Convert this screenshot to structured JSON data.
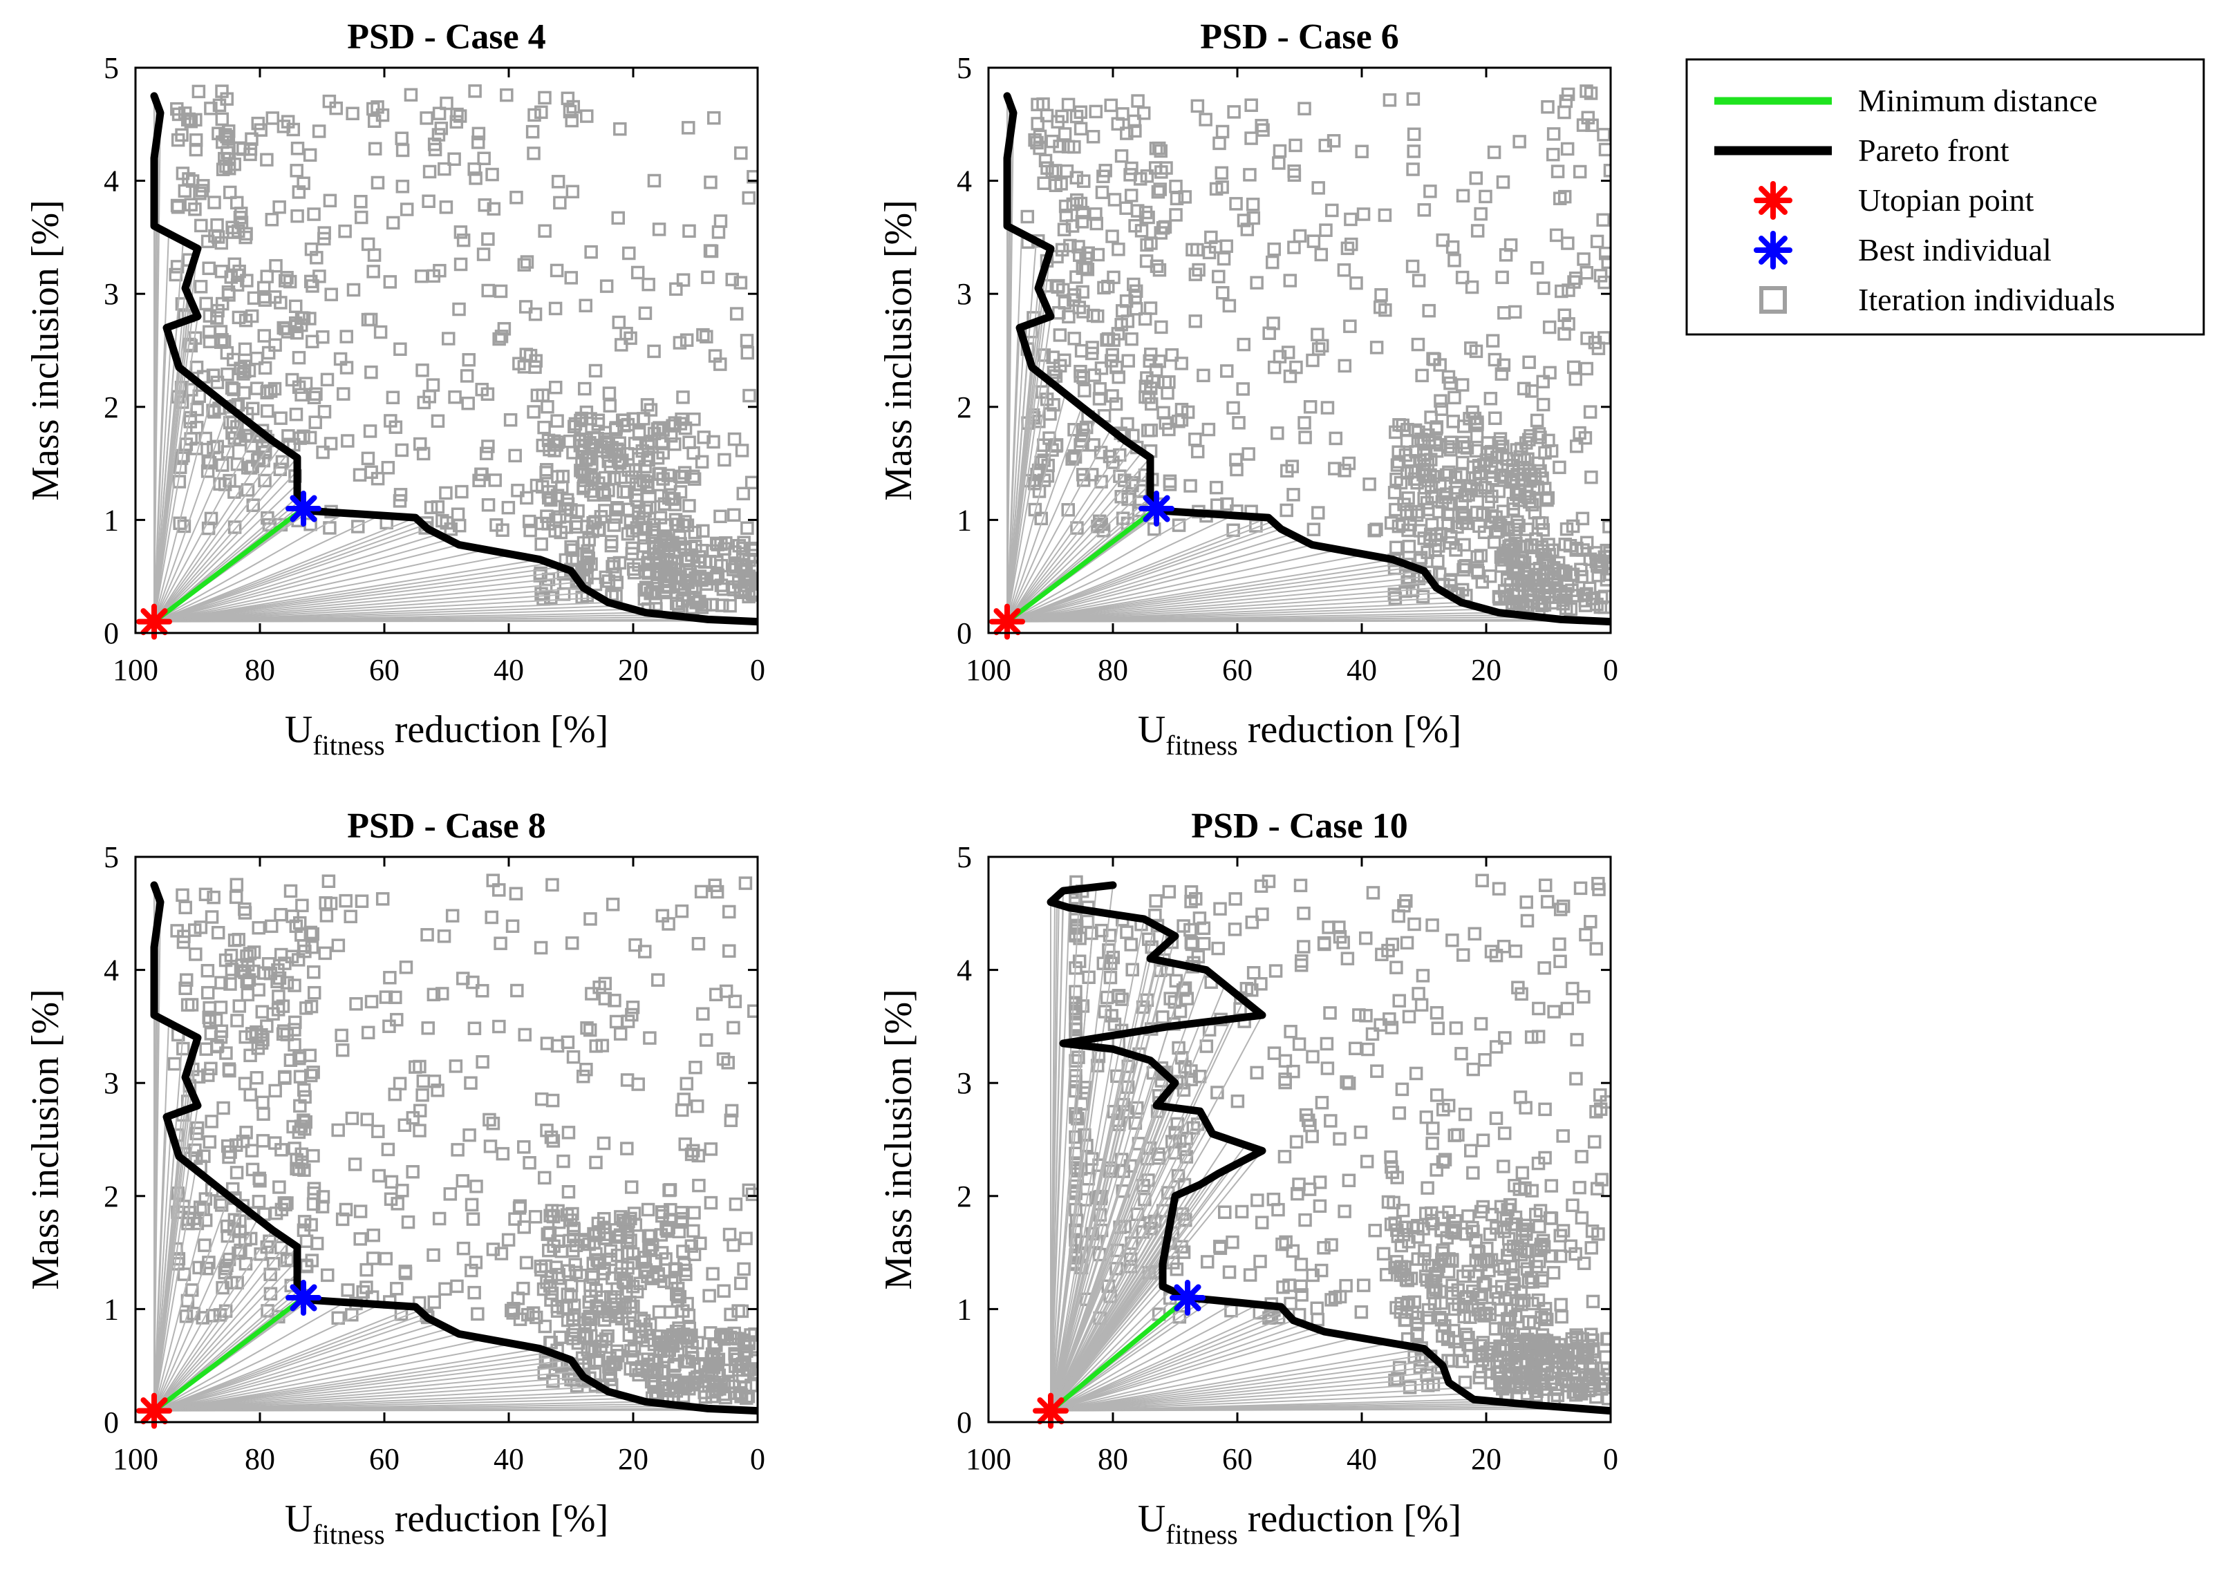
{
  "chart_data": [
    {
      "type": "scatter",
      "title": "PSD - Case 4",
      "xlabel_main": "U",
      "xlabel_sub": "fitness",
      "xlabel_rest": " reduction [%]",
      "ylabel": "Mass inclusion [%]",
      "xlim": [
        100,
        0
      ],
      "ylim": [
        0,
        5
      ],
      "xticks": [
        "100",
        "80",
        "60",
        "40",
        "20",
        "0"
      ],
      "yticks": [
        "0",
        "1",
        "2",
        "3",
        "4",
        "5"
      ],
      "utopian_point": {
        "x": 97,
        "y": 0.1
      },
      "best_individual": {
        "x": 73,
        "y": 1.1
      },
      "pareto_front": [
        [
          97,
          4.75
        ],
        [
          96,
          4.6
        ],
        [
          97,
          4.2
        ],
        [
          97,
          3.6
        ],
        [
          90,
          3.4
        ],
        [
          92,
          3.05
        ],
        [
          90,
          2.8
        ],
        [
          95,
          2.7
        ],
        [
          93,
          2.35
        ],
        [
          85,
          2.0
        ],
        [
          78,
          1.7
        ],
        [
          74,
          1.55
        ],
        [
          74,
          1.2
        ],
        [
          73,
          1.1
        ],
        [
          72,
          1.08
        ],
        [
          55,
          1.02
        ],
        [
          53,
          0.92
        ],
        [
          48,
          0.78
        ],
        [
          35,
          0.65
        ],
        [
          30,
          0.55
        ],
        [
          28,
          0.4
        ],
        [
          24,
          0.27
        ],
        [
          18,
          0.18
        ],
        [
          8,
          0.12
        ],
        [
          0,
          0.1
        ]
      ]
    },
    {
      "type": "scatter",
      "title": "PSD - Case 6",
      "xlabel_main": "U",
      "xlabel_sub": "fitness",
      "xlabel_rest": " reduction [%]",
      "ylabel": "Mass inclusion [%]",
      "xlim": [
        100,
        0
      ],
      "ylim": [
        0,
        5
      ],
      "xticks": [
        "100",
        "80",
        "60",
        "40",
        "20",
        "0"
      ],
      "yticks": [
        "0",
        "1",
        "2",
        "3",
        "4",
        "5"
      ],
      "utopian_point": {
        "x": 97,
        "y": 0.1
      },
      "best_individual": {
        "x": 73,
        "y": 1.1
      },
      "pareto_front": [
        [
          97,
          4.75
        ],
        [
          96,
          4.6
        ],
        [
          97,
          4.2
        ],
        [
          97,
          3.6
        ],
        [
          90,
          3.4
        ],
        [
          92,
          3.05
        ],
        [
          90,
          2.8
        ],
        [
          95,
          2.7
        ],
        [
          93,
          2.35
        ],
        [
          85,
          2.0
        ],
        [
          78,
          1.7
        ],
        [
          74,
          1.55
        ],
        [
          74,
          1.2
        ],
        [
          73,
          1.1
        ],
        [
          72,
          1.08
        ],
        [
          55,
          1.02
        ],
        [
          53,
          0.92
        ],
        [
          48,
          0.78
        ],
        [
          35,
          0.65
        ],
        [
          30,
          0.55
        ],
        [
          28,
          0.4
        ],
        [
          24,
          0.27
        ],
        [
          18,
          0.18
        ],
        [
          8,
          0.12
        ],
        [
          0,
          0.1
        ]
      ]
    },
    {
      "type": "scatter",
      "title": "PSD - Case 8",
      "xlabel_main": "U",
      "xlabel_sub": "fitness",
      "xlabel_rest": " reduction [%]",
      "ylabel": "Mass inclusion [%]",
      "xlim": [
        100,
        0
      ],
      "ylim": [
        0,
        5
      ],
      "xticks": [
        "100",
        "80",
        "60",
        "40",
        "20",
        "0"
      ],
      "yticks": [
        "0",
        "1",
        "2",
        "3",
        "4",
        "5"
      ],
      "utopian_point": {
        "x": 97,
        "y": 0.1
      },
      "best_individual": {
        "x": 73,
        "y": 1.1
      },
      "pareto_front": [
        [
          97,
          4.75
        ],
        [
          96,
          4.6
        ],
        [
          97,
          4.2
        ],
        [
          97,
          3.6
        ],
        [
          90,
          3.4
        ],
        [
          92,
          3.05
        ],
        [
          90,
          2.8
        ],
        [
          95,
          2.7
        ],
        [
          93,
          2.35
        ],
        [
          85,
          2.0
        ],
        [
          78,
          1.7
        ],
        [
          74,
          1.55
        ],
        [
          74,
          1.2
        ],
        [
          73,
          1.1
        ],
        [
          72,
          1.08
        ],
        [
          55,
          1.02
        ],
        [
          53,
          0.92
        ],
        [
          48,
          0.78
        ],
        [
          35,
          0.65
        ],
        [
          30,
          0.55
        ],
        [
          28,
          0.4
        ],
        [
          24,
          0.27
        ],
        [
          18,
          0.18
        ],
        [
          8,
          0.12
        ],
        [
          0,
          0.1
        ]
      ]
    },
    {
      "type": "scatter",
      "title": "PSD - Case 10",
      "xlabel_main": "U",
      "xlabel_sub": "fitness",
      "xlabel_rest": " reduction [%]",
      "ylabel": "Mass inclusion [%]",
      "xlim": [
        100,
        0
      ],
      "ylim": [
        0,
        5
      ],
      "xticks": [
        "100",
        "80",
        "60",
        "40",
        "20",
        "0"
      ],
      "yticks": [
        "0",
        "1",
        "2",
        "3",
        "4",
        "5"
      ],
      "utopian_point": {
        "x": 90,
        "y": 0.1
      },
      "best_individual": {
        "x": 68,
        "y": 1.1
      },
      "pareto_front": [
        [
          80,
          4.75
        ],
        [
          88,
          4.7
        ],
        [
          90,
          4.6
        ],
        [
          87,
          4.55
        ],
        [
          75,
          4.45
        ],
        [
          70,
          4.3
        ],
        [
          74,
          4.1
        ],
        [
          65,
          4.0
        ],
        [
          56,
          3.6
        ],
        [
          71,
          3.5
        ],
        [
          88,
          3.35
        ],
        [
          80,
          3.3
        ],
        [
          74,
          3.2
        ],
        [
          70,
          3.0
        ],
        [
          73,
          2.8
        ],
        [
          66,
          2.75
        ],
        [
          64,
          2.55
        ],
        [
          56,
          2.4
        ],
        [
          63,
          2.2
        ],
        [
          66,
          2.1
        ],
        [
          70,
          2.0
        ],
        [
          71,
          1.7
        ],
        [
          72,
          1.4
        ],
        [
          72,
          1.2
        ],
        [
          68,
          1.1
        ],
        [
          64,
          1.08
        ],
        [
          53,
          1.02
        ],
        [
          51,
          0.9
        ],
        [
          46,
          0.8
        ],
        [
          30,
          0.65
        ],
        [
          27,
          0.5
        ],
        [
          26,
          0.35
        ],
        [
          22,
          0.2
        ],
        [
          12,
          0.15
        ],
        [
          0,
          0.1
        ]
      ]
    }
  ],
  "legend": {
    "items": [
      {
        "label": "Minimum distance",
        "kind": "line",
        "color": "#1ee31e"
      },
      {
        "label": "Pareto front",
        "kind": "line",
        "color": "#000000"
      },
      {
        "label": "Utopian point",
        "kind": "star",
        "color": "#ff0000"
      },
      {
        "label": "Best individual",
        "kind": "star",
        "color": "#0000ff"
      },
      {
        "label": "Iteration individuals",
        "kind": "square",
        "color": "#a0a0a0"
      }
    ]
  },
  "colors": {
    "individuals": "#a0a0a0",
    "rays": "#b4b4b4",
    "pareto": "#000000",
    "min_distance": "#1ee31e",
    "utopian": "#ff0000",
    "best": "#0000ff"
  }
}
